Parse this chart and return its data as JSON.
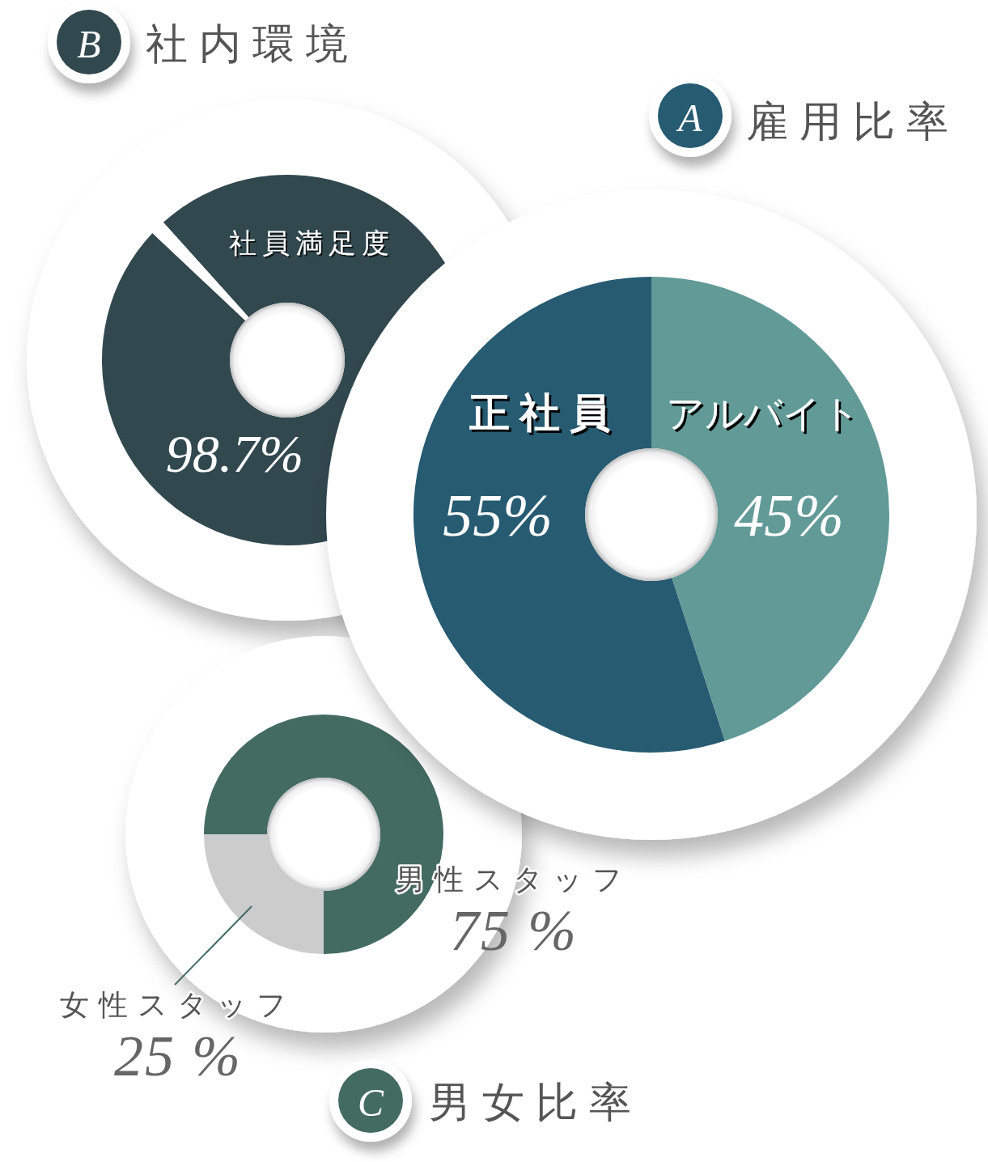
{
  "chart_data": [
    {
      "type": "donut",
      "title": "社内環境",
      "annotations": [
        "B"
      ],
      "categories": [
        "社員満足度",
        null
      ],
      "values": [
        98.7,
        1.3
      ],
      "colors": [
        "#32484f",
        "#ffffff"
      ],
      "value_labels": [
        "98.7%",
        null
      ]
    },
    {
      "type": "donut",
      "title": "雇用比率",
      "annotations": [
        "A"
      ],
      "categories": [
        "正社員",
        "アルバイト"
      ],
      "values": [
        55,
        45
      ],
      "colors": [
        "#265b72",
        "#619a96"
      ],
      "value_labels": [
        "55%",
        "45%"
      ]
    },
    {
      "type": "donut",
      "title": "男女比率",
      "annotations": [
        "C"
      ],
      "categories": [
        "男性スタッフ",
        "女性スタッフ"
      ],
      "values": [
        75,
        25
      ],
      "colors": [
        "#436b62",
        "#cccccc"
      ],
      "value_labels": [
        "75 %",
        "25 %"
      ]
    }
  ]
}
